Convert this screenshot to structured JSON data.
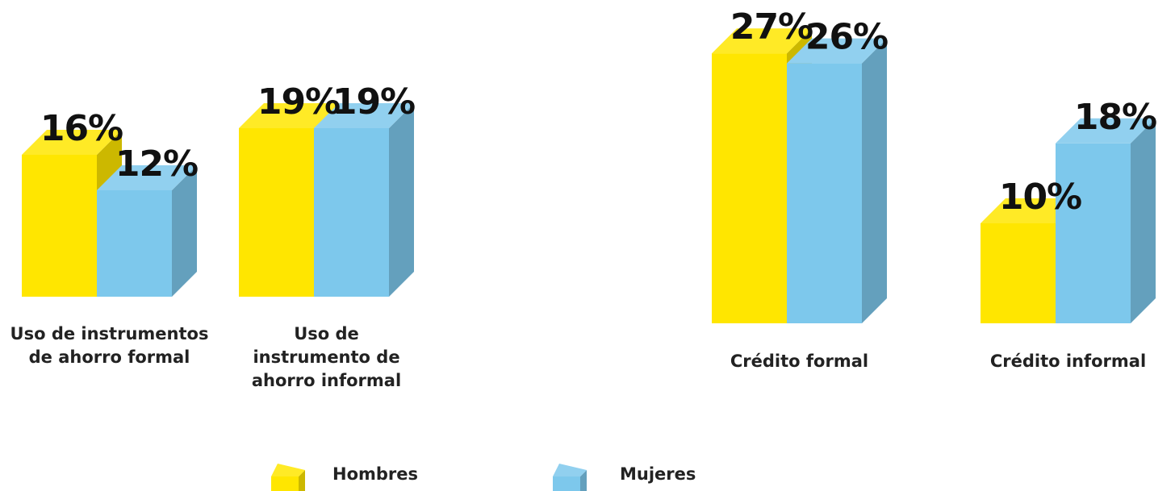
{
  "chart_data": [
    {
      "type": "bar",
      "categories": [
        "Uso de instrumentos de ahorro formal",
        "Uso de instrumento de ahorro informal"
      ],
      "series": [
        {
          "name": "Hombres",
          "color": "#FFE600",
          "values": [
            16,
            19
          ],
          "value_labels": [
            "16%",
            "19%"
          ]
        },
        {
          "name": "Mujeres",
          "color": "#7DC8EC",
          "values": [
            12,
            19
          ],
          "value_labels": [
            "12%",
            "19%"
          ]
        }
      ]
    },
    {
      "type": "bar",
      "categories": [
        "Crédito formal",
        "Crédito informal"
      ],
      "series": [
        {
          "name": "Hombres",
          "color": "#FFE600",
          "values": [
            27,
            10
          ],
          "value_labels": [
            "27%",
            "10%"
          ]
        },
        {
          "name": "Mujeres",
          "color": "#7DC8EC",
          "values": [
            26,
            18
          ],
          "value_labels": [
            "26%",
            "18%"
          ]
        }
      ]
    }
  ]
}
